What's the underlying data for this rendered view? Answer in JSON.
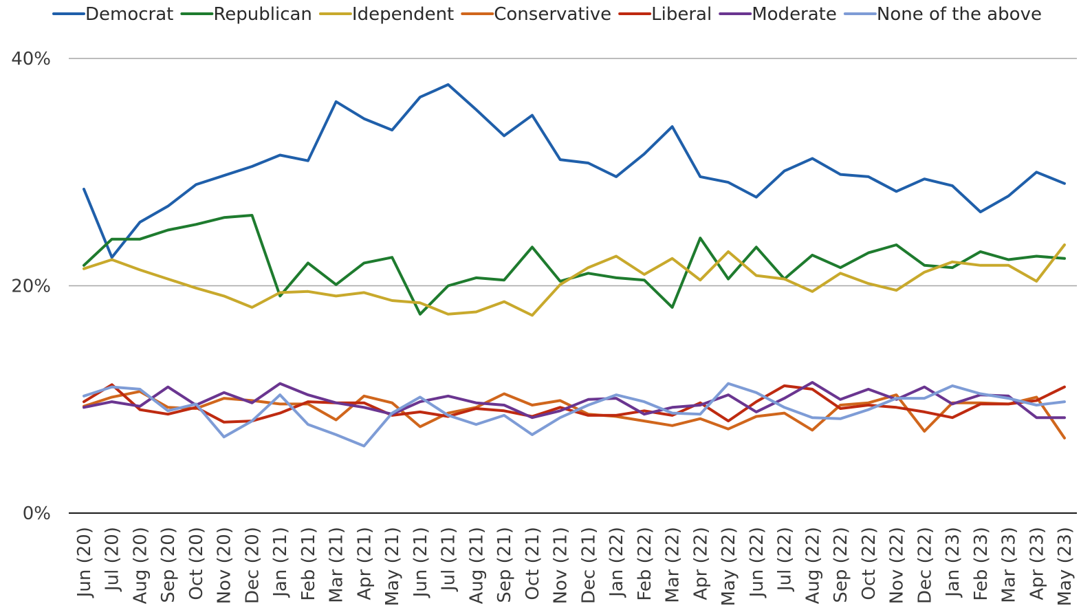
{
  "chart_data": {
    "type": "line",
    "title": "",
    "xlabel": "",
    "ylabel": "",
    "ylim": [
      0,
      40
    ],
    "yticks": [
      "0%",
      "20%",
      "40%"
    ],
    "ytick_values": [
      0,
      20,
      40
    ],
    "grid": true,
    "legend_position": "top",
    "categories": [
      "Jun (20)",
      "Jul (20)",
      "Aug (20)",
      "Sep (20)",
      "Oct (20)",
      "Nov (20)",
      "Dec (20)",
      "Jan (21)",
      "Feb (21)",
      "Mar (21)",
      "Apr (21)",
      "May (21)",
      "Jun (21)",
      "Jul (21)",
      "Aug (21)",
      "Sep (21)",
      "Oct (21)",
      "Nov (21)",
      "Dec (21)",
      "Jan (22)",
      "Feb (22)",
      "Mar (22)",
      "Apr (22)",
      "May (22)",
      "Jun (22)",
      "Jul (22)",
      "Aug (22)",
      "Sep (22)",
      "Oct (22)",
      "Nov (22)",
      "Dec (22)",
      "Jan (23)",
      "Feb (23)",
      "Mar (23)",
      "Apr (23)",
      "May (23)"
    ],
    "series": [
      {
        "name": "Democrat",
        "color": "#1F5FAA",
        "values": [
          28.5,
          22.5,
          25.6,
          27.0,
          28.9,
          29.7,
          30.5,
          31.5,
          31.0,
          36.2,
          34.7,
          33.7,
          36.6,
          37.7,
          35.5,
          33.2,
          35.0,
          31.1,
          30.8,
          29.6,
          31.6,
          34.0,
          29.6,
          29.1,
          27.8,
          30.1,
          31.2,
          29.8,
          29.6,
          28.3,
          29.4,
          28.8,
          26.5,
          27.9,
          30.0,
          29.0
        ]
      },
      {
        "name": "Republican",
        "color": "#1E7B2E",
        "values": [
          21.8,
          24.1,
          24.1,
          24.9,
          25.4,
          26.0,
          26.2,
          19.1,
          22.0,
          20.1,
          22.0,
          22.5,
          17.5,
          20.0,
          20.7,
          20.5,
          23.4,
          20.4,
          21.1,
          20.7,
          20.5,
          18.1,
          24.2,
          20.6,
          23.4,
          20.6,
          22.7,
          21.6,
          22.9,
          23.6,
          21.8,
          21.6,
          23.0,
          22.3,
          22.6,
          22.4
        ]
      },
      {
        "name": "Idependent",
        "color": "#C8A92C",
        "values": [
          21.5,
          22.3,
          21.4,
          20.6,
          19.8,
          19.1,
          18.1,
          19.4,
          19.5,
          19.1,
          19.4,
          18.7,
          18.5,
          17.5,
          17.7,
          18.6,
          17.4,
          20.1,
          21.6,
          22.6,
          21.0,
          22.4,
          20.5,
          23.0,
          20.9,
          20.6,
          19.5,
          21.1,
          20.2,
          19.6,
          21.2,
          22.1,
          21.8,
          21.8,
          20.4,
          23.6
        ]
      },
      {
        "name": "Conservative",
        "color": "#D0661C",
        "values": [
          9.4,
          10.2,
          10.7,
          9.3,
          9.2,
          10.1,
          9.9,
          9.6,
          9.6,
          8.2,
          10.3,
          9.7,
          7.6,
          8.8,
          9.3,
          10.5,
          9.5,
          9.9,
          8.7,
          8.5,
          8.1,
          7.7,
          8.3,
          7.4,
          8.5,
          8.8,
          7.3,
          9.5,
          9.7,
          10.4,
          7.2,
          9.7,
          9.7,
          9.6,
          10.2,
          6.6
        ]
      },
      {
        "name": "Liberal",
        "color": "#BE2A10",
        "values": [
          9.8,
          11.3,
          9.1,
          8.7,
          9.3,
          8.0,
          8.1,
          8.8,
          9.8,
          9.7,
          9.7,
          8.6,
          8.9,
          8.5,
          9.2,
          9.0,
          8.5,
          9.3,
          8.6,
          8.6,
          9.0,
          8.6,
          9.7,
          8.1,
          9.8,
          11.2,
          10.9,
          9.2,
          9.5,
          9.3,
          8.9,
          8.4,
          9.6,
          9.6,
          9.9,
          11.1
        ]
      },
      {
        "name": "Moderate",
        "color": "#6A3590",
        "values": [
          9.3,
          9.8,
          9.4,
          11.1,
          9.5,
          10.6,
          9.7,
          11.4,
          10.4,
          9.7,
          9.3,
          8.7,
          9.8,
          10.3,
          9.7,
          9.5,
          8.4,
          9.0,
          10.0,
          10.1,
          8.7,
          9.3,
          9.5,
          10.4,
          8.9,
          10.1,
          11.5,
          10.0,
          10.9,
          10.0,
          11.1,
          9.6,
          10.4,
          10.3,
          8.4,
          8.4
        ]
      },
      {
        "name": "None of the above",
        "color": "#7E9CD6",
        "values": [
          10.3,
          11.1,
          10.9,
          9.0,
          9.6,
          6.7,
          8.1,
          10.4,
          7.8,
          6.9,
          5.9,
          8.8,
          10.2,
          8.6,
          7.8,
          8.6,
          6.9,
          8.4,
          9.5,
          10.4,
          9.8,
          8.8,
          8.7,
          11.4,
          10.6,
          9.3,
          8.4,
          8.3,
          9.1,
          10.1,
          10.1,
          11.2,
          10.5,
          10.1,
          9.5,
          9.8
        ]
      }
    ]
  }
}
